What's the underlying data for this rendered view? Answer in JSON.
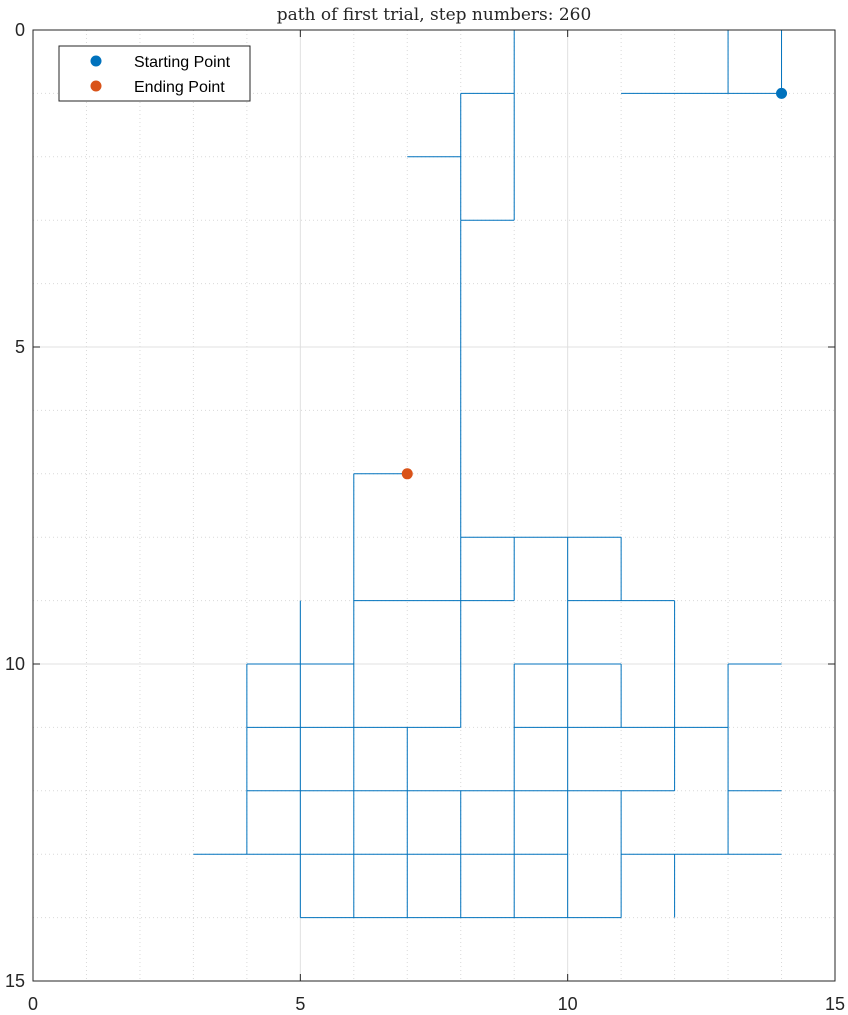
{
  "chart_data": {
    "type": "line",
    "title": "path of first trial, step numbers: 260",
    "xlabel": "",
    "ylabel": "",
    "xlim": [
      0,
      15
    ],
    "ylim": [
      0,
      15
    ],
    "y_reversed": true,
    "x_ticks": [
      0,
      5,
      10,
      15
    ],
    "y_ticks": [
      0,
      5,
      10,
      15
    ],
    "x_tick_labels": [
      "0",
      "5",
      "10",
      "15"
    ],
    "y_tick_labels": [
      "0",
      "5",
      "10",
      "15"
    ],
    "grid": true,
    "minor_grid": true,
    "legend_position": "top-left",
    "colors": {
      "path": "#0072BD",
      "start": "#0072BD",
      "end": "#D95319"
    },
    "series": [
      {
        "kind": "path",
        "segments": [
          [
            [
              11,
              1
            ],
            [
              14,
              1
            ]
          ],
          [
            [
              13,
              0
            ],
            [
              13,
              1
            ]
          ],
          [
            [
              9,
              0
            ],
            [
              14,
              0
            ]
          ],
          [
            [
              14,
              0
            ],
            [
              14,
              1
            ]
          ],
          [
            [
              9,
              0
            ],
            [
              9,
              1
            ]
          ],
          [
            [
              8,
              1
            ],
            [
              9,
              1
            ]
          ],
          [
            [
              8,
              1
            ],
            [
              8,
              3
            ]
          ],
          [
            [
              9,
              1
            ],
            [
              9,
              3
            ]
          ],
          [
            [
              8,
              3
            ],
            [
              9,
              3
            ]
          ],
          [
            [
              7,
              2
            ],
            [
              8,
              2
            ]
          ],
          [
            [
              8,
              3
            ],
            [
              8,
              11
            ]
          ],
          [
            [
              6,
              7
            ],
            [
              7,
              7
            ]
          ],
          [
            [
              6,
              7
            ],
            [
              6,
              14
            ]
          ],
          [
            [
              8,
              8
            ],
            [
              11,
              8
            ]
          ],
          [
            [
              9,
              8
            ],
            [
              9,
              9
            ]
          ],
          [
            [
              10,
              8
            ],
            [
              10,
              14
            ]
          ],
          [
            [
              11,
              8
            ],
            [
              11,
              9
            ]
          ],
          [
            [
              6,
              9
            ],
            [
              9,
              9
            ]
          ],
          [
            [
              10,
              9
            ],
            [
              12,
              9
            ]
          ],
          [
            [
              12,
              9
            ],
            [
              12,
              12
            ]
          ],
          [
            [
              5,
              9
            ],
            [
              5,
              14
            ]
          ],
          [
            [
              4,
              10
            ],
            [
              6,
              10
            ]
          ],
          [
            [
              9,
              10
            ],
            [
              11,
              10
            ]
          ],
          [
            [
              13,
              10
            ],
            [
              14,
              10
            ]
          ],
          [
            [
              4,
              10
            ],
            [
              4,
              13
            ]
          ],
          [
            [
              9,
              10
            ],
            [
              9,
              14
            ]
          ],
          [
            [
              11,
              10
            ],
            [
              11,
              11
            ]
          ],
          [
            [
              4,
              11
            ],
            [
              8,
              11
            ]
          ],
          [
            [
              9,
              11
            ],
            [
              13,
              11
            ]
          ],
          [
            [
              13,
              10
            ],
            [
              13,
              13
            ]
          ],
          [
            [
              7,
              11
            ],
            [
              7,
              14
            ]
          ],
          [
            [
              4,
              12
            ],
            [
              12,
              12
            ]
          ],
          [
            [
              13,
              12
            ],
            [
              14,
              12
            ]
          ],
          [
            [
              8,
              12
            ],
            [
              8,
              14
            ]
          ],
          [
            [
              11,
              12
            ],
            [
              11,
              14
            ]
          ],
          [
            [
              3,
              13
            ],
            [
              10,
              13
            ]
          ],
          [
            [
              11,
              13
            ],
            [
              14,
              13
            ]
          ],
          [
            [
              12,
              13
            ],
            [
              12,
              14
            ]
          ],
          [
            [
              5,
              14
            ],
            [
              11,
              14
            ]
          ]
        ]
      },
      {
        "name": "Starting Point",
        "kind": "marker",
        "x": 14,
        "y": 1
      },
      {
        "name": "Ending Point",
        "kind": "marker",
        "x": 7,
        "y": 7
      }
    ]
  }
}
